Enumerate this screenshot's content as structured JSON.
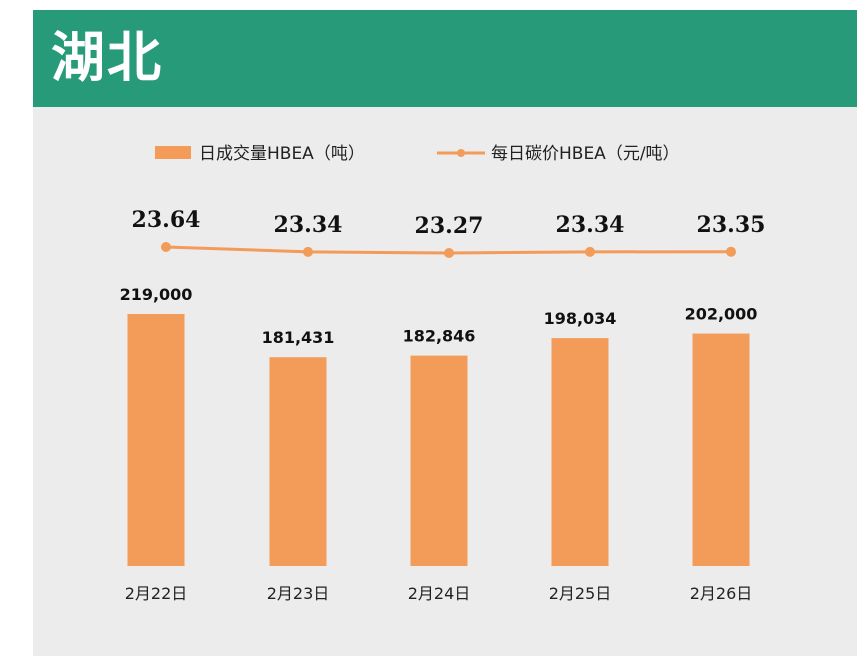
{
  "header": {
    "title": "湖北"
  },
  "chart_data": {
    "type": "bar",
    "categories": [
      "2月22日",
      "2月23日",
      "2月24日",
      "2月25日",
      "2月26日"
    ],
    "series": [
      {
        "name": "日成交量HBEA（吨）",
        "kind": "bar",
        "values": [
          219000,
          181431,
          182846,
          198034,
          202000
        ],
        "labels": [
          "219,000",
          "181,431",
          "182,846",
          "198,034",
          "202,000"
        ],
        "color": "#f39b58"
      },
      {
        "name": "每日碳价HBEA（元/吨）",
        "kind": "line",
        "values": [
          23.64,
          23.34,
          23.27,
          23.34,
          23.35
        ],
        "labels": [
          "23.64",
          "23.34",
          "23.27",
          "23.34",
          "23.35"
        ],
        "color": "#f39b58"
      }
    ],
    "ylim_bar": [
      0,
      220000
    ],
    "legend": "top",
    "grid": false
  }
}
